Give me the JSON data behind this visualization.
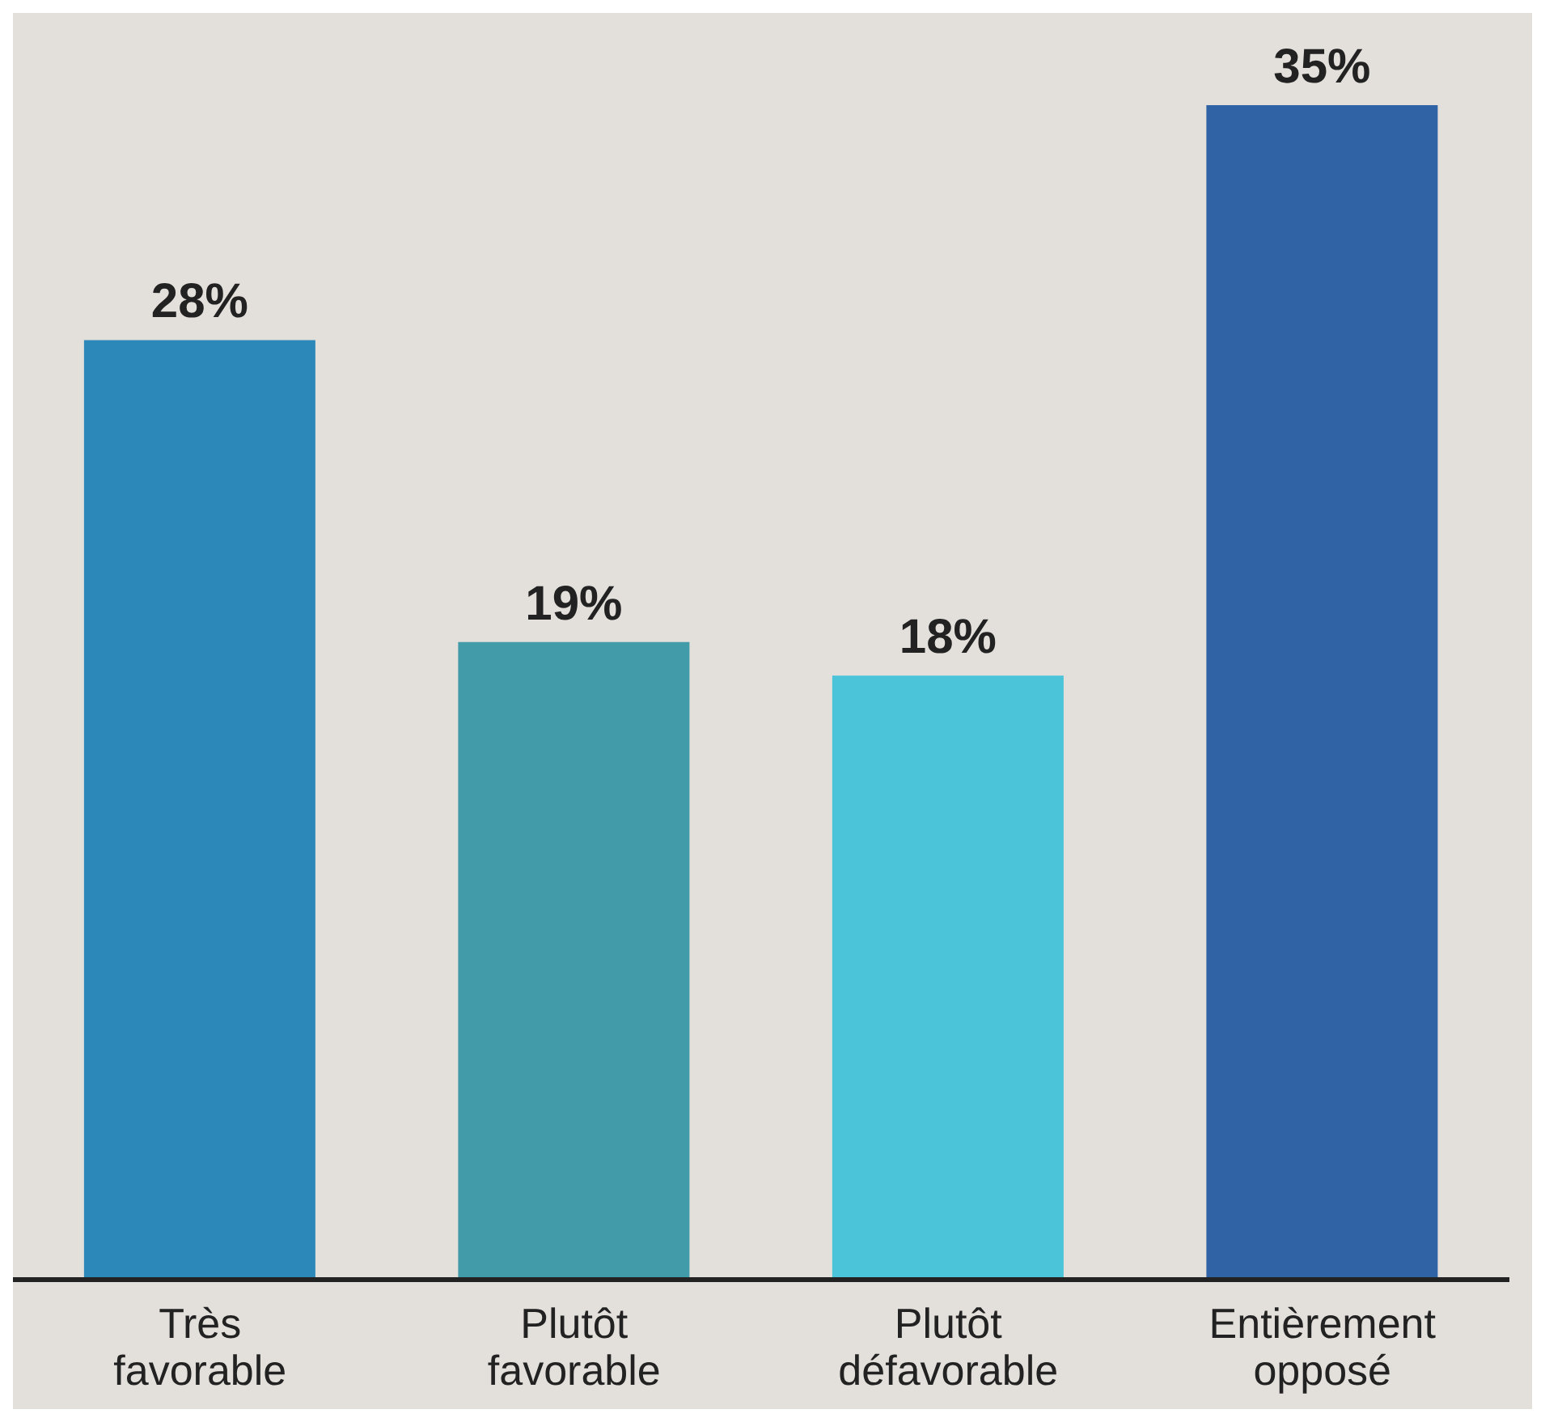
{
  "chart_data": {
    "type": "bar",
    "categories": [
      "Très favorable",
      "Plutôt favorable",
      "Plutôt défavorable",
      "Entièrement opposé"
    ],
    "values": [
      28,
      19,
      18,
      35
    ],
    "colors": [
      "#2b88b9",
      "#419ba8",
      "#4bc3d8",
      "#3062a6"
    ],
    "value_labels": [
      "28%",
      "19%",
      "18%",
      "35%"
    ],
    "grid": false,
    "legend": false
  }
}
